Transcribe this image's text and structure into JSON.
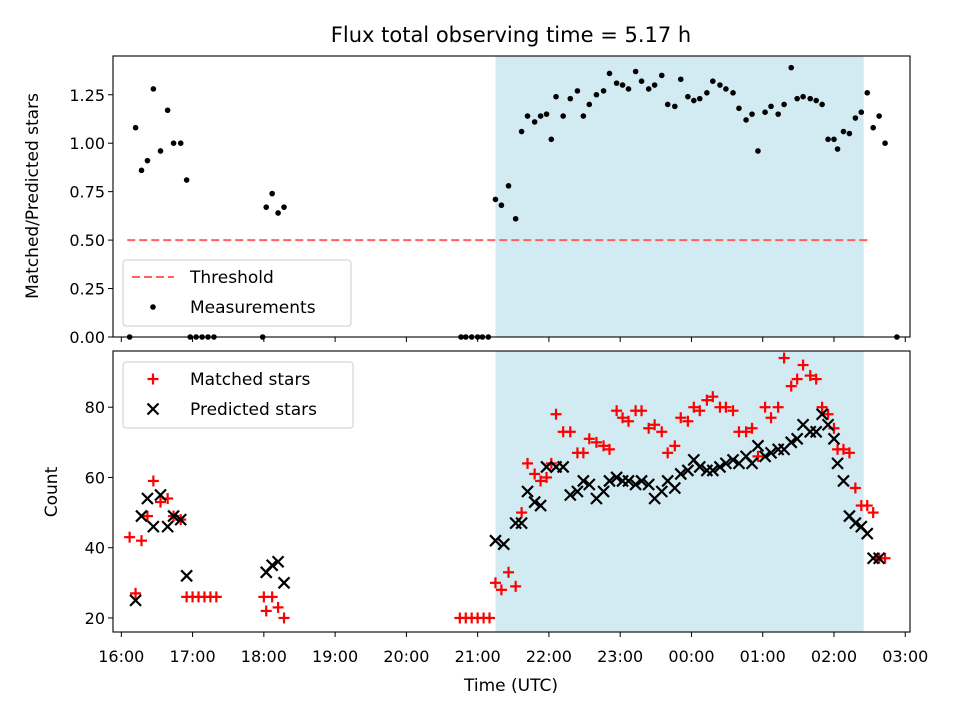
{
  "chart_data": [
    {
      "type": "scatter",
      "title": "Flux total observing time = 5.17 h",
      "xlabel": "",
      "ylabel": "Matched/Predicted stars",
      "ylim": [
        0,
        1.45
      ],
      "yticks": [
        "0.00",
        "0.25",
        "0.50",
        "0.75",
        "1.00",
        "1.25"
      ],
      "grid": false,
      "legend_position": "lower-left",
      "shaded_interval": {
        "start": "21:15",
        "end": "02:25",
        "color": "#add8e6"
      },
      "threshold": {
        "name": "Threshold",
        "value": 0.5,
        "x_start": "16:05",
        "x_end": "02:30",
        "color": "#ff6060"
      },
      "series": [
        {
          "name": "Measurements",
          "color": "#000000",
          "marker": "dot",
          "points": [
            [
              "16:07",
              0.0
            ],
            [
              "16:12",
              1.08
            ],
            [
              "16:17",
              0.86
            ],
            [
              "16:22",
              0.91
            ],
            [
              "16:27",
              1.28
            ],
            [
              "16:33",
              0.96
            ],
            [
              "16:39",
              1.17
            ],
            [
              "16:44",
              1.0
            ],
            [
              "16:50",
              1.0
            ],
            [
              "16:55",
              0.81
            ],
            [
              "16:58",
              0.0
            ],
            [
              "17:03",
              0.0
            ],
            [
              "17:08",
              0.0
            ],
            [
              "17:13",
              0.0
            ],
            [
              "17:18",
              0.0
            ],
            [
              "17:59",
              0.0
            ],
            [
              "18:02",
              0.67
            ],
            [
              "18:07",
              0.74
            ],
            [
              "18:12",
              0.64
            ],
            [
              "18:17",
              0.67
            ],
            [
              "20:46",
              0.0
            ],
            [
              "20:50",
              0.0
            ],
            [
              "20:55",
              0.0
            ],
            [
              "21:00",
              0.0
            ],
            [
              "21:04",
              0.0
            ],
            [
              "21:09",
              0.0
            ],
            [
              "21:15",
              0.71
            ],
            [
              "21:20",
              0.68
            ],
            [
              "21:26",
              0.78
            ],
            [
              "21:32",
              0.61
            ],
            [
              "21:37",
              1.06
            ],
            [
              "21:42",
              1.14
            ],
            [
              "21:48",
              1.11
            ],
            [
              "21:53",
              1.14
            ],
            [
              "21:58",
              1.15
            ],
            [
              "22:02",
              1.02
            ],
            [
              "22:06",
              1.24
            ],
            [
              "22:12",
              1.14
            ],
            [
              "22:18",
              1.23
            ],
            [
              "22:24",
              1.27
            ],
            [
              "22:29",
              1.14
            ],
            [
              "22:34",
              1.2
            ],
            [
              "22:40",
              1.25
            ],
            [
              "22:46",
              1.27
            ],
            [
              "22:51",
              1.36
            ],
            [
              "22:57",
              1.31
            ],
            [
              "23:02",
              1.3
            ],
            [
              "23:07",
              1.28
            ],
            [
              "23:13",
              1.37
            ],
            [
              "23:18",
              1.32
            ],
            [
              "23:24",
              1.28
            ],
            [
              "23:29",
              1.3
            ],
            [
              "23:35",
              1.35
            ],
            [
              "23:40",
              1.2
            ],
            [
              "23:46",
              1.19
            ],
            [
              "23:51",
              1.33
            ],
            [
              "23:57",
              1.24
            ],
            [
              "00:02",
              1.22
            ],
            [
              "00:07",
              1.23
            ],
            [
              "00:13",
              1.26
            ],
            [
              "00:18",
              1.32
            ],
            [
              "00:24",
              1.3
            ],
            [
              "00:29",
              1.28
            ],
            [
              "00:35",
              1.26
            ],
            [
              "00:40",
              1.18
            ],
            [
              "00:46",
              1.12
            ],
            [
              "00:51",
              1.15
            ],
            [
              "00:56",
              0.96
            ],
            [
              "01:02",
              1.16
            ],
            [
              "01:07",
              1.19
            ],
            [
              "01:13",
              1.15
            ],
            [
              "01:18",
              1.2
            ],
            [
              "01:24",
              1.39
            ],
            [
              "01:29",
              1.23
            ],
            [
              "01:34",
              1.24
            ],
            [
              "01:40",
              1.23
            ],
            [
              "01:45",
              1.22
            ],
            [
              "01:50",
              1.2
            ],
            [
              "01:55",
              1.02
            ],
            [
              "02:00",
              1.02
            ],
            [
              "02:03",
              0.97
            ],
            [
              "02:08",
              1.06
            ],
            [
              "02:13",
              1.05
            ],
            [
              "02:18",
              1.13
            ],
            [
              "02:23",
              1.16
            ],
            [
              "02:28",
              1.26
            ],
            [
              "02:33",
              1.08
            ],
            [
              "02:38",
              1.14
            ],
            [
              "02:43",
              1.0
            ],
            [
              "02:53",
              0.0
            ]
          ]
        }
      ]
    },
    {
      "type": "scatter",
      "title": "",
      "xlabel": "Time (UTC)",
      "ylabel": "Count",
      "ylim": [
        16,
        96
      ],
      "yticks": [
        "20",
        "40",
        "60",
        "80"
      ],
      "xticks": [
        "16:00",
        "17:00",
        "18:00",
        "19:00",
        "20:00",
        "21:00",
        "22:00",
        "23:00",
        "00:00",
        "01:00",
        "02:00",
        "03:00"
      ],
      "x_axis_range": [
        "15:53",
        "03:04"
      ],
      "grid": false,
      "legend_position": "upper-left",
      "shaded_interval": {
        "start": "21:15",
        "end": "02:25",
        "color": "#add8e6"
      },
      "series": [
        {
          "name": "Matched stars",
          "color": "#ff0000",
          "marker": "plus",
          "points": [
            [
              "16:07",
              43
            ],
            [
              "16:12",
              27
            ],
            [
              "16:17",
              42
            ],
            [
              "16:22",
              49
            ],
            [
              "16:27",
              59
            ],
            [
              "16:33",
              53
            ],
            [
              "16:39",
              54
            ],
            [
              "16:44",
              49
            ],
            [
              "16:50",
              48
            ],
            [
              "16:55",
              26
            ],
            [
              "17:00",
              26
            ],
            [
              "17:05",
              26
            ],
            [
              "17:10",
              26
            ],
            [
              "17:15",
              26
            ],
            [
              "17:20",
              26
            ],
            [
              "18:00",
              26
            ],
            [
              "18:02",
              22
            ],
            [
              "18:07",
              26
            ],
            [
              "18:12",
              23
            ],
            [
              "18:17",
              20
            ],
            [
              "20:45",
              20
            ],
            [
              "20:50",
              20
            ],
            [
              "20:55",
              20
            ],
            [
              "21:00",
              20
            ],
            [
              "21:05",
              20
            ],
            [
              "21:10",
              20
            ],
            [
              "21:15",
              30
            ],
            [
              "21:20",
              28
            ],
            [
              "21:26",
              33
            ],
            [
              "21:32",
              29
            ],
            [
              "21:37",
              50
            ],
            [
              "21:42",
              64
            ],
            [
              "21:48",
              61
            ],
            [
              "21:53",
              59
            ],
            [
              "21:58",
              60
            ],
            [
              "22:02",
              64
            ],
            [
              "22:06",
              78
            ],
            [
              "22:12",
              73
            ],
            [
              "22:18",
              73
            ],
            [
              "22:24",
              67
            ],
            [
              "22:29",
              67
            ],
            [
              "22:34",
              71
            ],
            [
              "22:40",
              70
            ],
            [
              "22:46",
              69
            ],
            [
              "22:51",
              68
            ],
            [
              "22:57",
              79
            ],
            [
              "23:02",
              77
            ],
            [
              "23:07",
              76
            ],
            [
              "23:13",
              79
            ],
            [
              "23:18",
              79
            ],
            [
              "23:24",
              74
            ],
            [
              "23:29",
              75
            ],
            [
              "23:35",
              73
            ],
            [
              "23:40",
              67
            ],
            [
              "23:46",
              69
            ],
            [
              "23:51",
              77
            ],
            [
              "23:57",
              76
            ],
            [
              "00:02",
              80
            ],
            [
              "00:07",
              79
            ],
            [
              "00:13",
              82
            ],
            [
              "00:18",
              83
            ],
            [
              "00:24",
              80
            ],
            [
              "00:29",
              80
            ],
            [
              "00:35",
              79
            ],
            [
              "00:40",
              73
            ],
            [
              "00:46",
              73
            ],
            [
              "00:51",
              74
            ],
            [
              "00:56",
              66
            ],
            [
              "01:02",
              80
            ],
            [
              "01:07",
              77
            ],
            [
              "01:13",
              80
            ],
            [
              "01:18",
              94
            ],
            [
              "01:24",
              86
            ],
            [
              "01:29",
              88
            ],
            [
              "01:34",
              92
            ],
            [
              "01:40",
              89
            ],
            [
              "01:45",
              88
            ],
            [
              "01:50",
              80
            ],
            [
              "01:55",
              78
            ],
            [
              "02:00",
              74
            ],
            [
              "02:03",
              68
            ],
            [
              "02:08",
              68
            ],
            [
              "02:13",
              67
            ],
            [
              "02:18",
              57
            ],
            [
              "02:23",
              52
            ],
            [
              "02:28",
              52
            ],
            [
              "02:33",
              50
            ],
            [
              "02:38",
              37
            ],
            [
              "02:43",
              37
            ]
          ]
        },
        {
          "name": "Predicted stars",
          "color": "#000000",
          "marker": "x",
          "points": [
            [
              "16:12",
              25
            ],
            [
              "16:17",
              49
            ],
            [
              "16:22",
              54
            ],
            [
              "16:27",
              46
            ],
            [
              "16:33",
              55
            ],
            [
              "16:39",
              46
            ],
            [
              "16:44",
              49
            ],
            [
              "16:50",
              48
            ],
            [
              "16:55",
              32
            ],
            [
              "18:02",
              33
            ],
            [
              "18:07",
              35
            ],
            [
              "18:12",
              36
            ],
            [
              "18:17",
              30
            ],
            [
              "21:15",
              42
            ],
            [
              "21:22",
              41
            ],
            [
              "21:32",
              47
            ],
            [
              "21:37",
              47
            ],
            [
              "21:42",
              56
            ],
            [
              "21:48",
              53
            ],
            [
              "21:53",
              52
            ],
            [
              "21:58",
              63
            ],
            [
              "22:06",
              63
            ],
            [
              "22:12",
              63
            ],
            [
              "22:18",
              55
            ],
            [
              "22:24",
              56
            ],
            [
              "22:29",
              59
            ],
            [
              "22:34",
              58
            ],
            [
              "22:40",
              54
            ],
            [
              "22:46",
              56
            ],
            [
              "22:51",
              59
            ],
            [
              "22:57",
              60
            ],
            [
              "23:02",
              59
            ],
            [
              "23:07",
              59
            ],
            [
              "23:13",
              58
            ],
            [
              "23:18",
              59
            ],
            [
              "23:24",
              58
            ],
            [
              "23:29",
              54
            ],
            [
              "23:35",
              56
            ],
            [
              "23:40",
              59
            ],
            [
              "23:46",
              57
            ],
            [
              "23:51",
              61
            ],
            [
              "23:57",
              62
            ],
            [
              "00:02",
              65
            ],
            [
              "00:07",
              63
            ],
            [
              "00:13",
              62
            ],
            [
              "00:18",
              62
            ],
            [
              "00:24",
              63
            ],
            [
              "00:29",
              64
            ],
            [
              "00:35",
              65
            ],
            [
              "00:40",
              64
            ],
            [
              "00:46",
              66
            ],
            [
              "00:51",
              64
            ],
            [
              "00:56",
              69
            ],
            [
              "01:02",
              66
            ],
            [
              "01:07",
              67
            ],
            [
              "01:13",
              68
            ],
            [
              "01:18",
              68
            ],
            [
              "01:24",
              70
            ],
            [
              "01:29",
              71
            ],
            [
              "01:34",
              75
            ],
            [
              "01:40",
              73
            ],
            [
              "01:45",
              73
            ],
            [
              "01:50",
              78
            ],
            [
              "01:55",
              75
            ],
            [
              "02:00",
              71
            ],
            [
              "02:03",
              64
            ],
            [
              "02:08",
              59
            ],
            [
              "02:13",
              49
            ],
            [
              "02:18",
              47
            ],
            [
              "02:23",
              46
            ],
            [
              "02:28",
              44
            ],
            [
              "02:33",
              37
            ],
            [
              "02:38",
              37
            ]
          ]
        }
      ]
    }
  ]
}
